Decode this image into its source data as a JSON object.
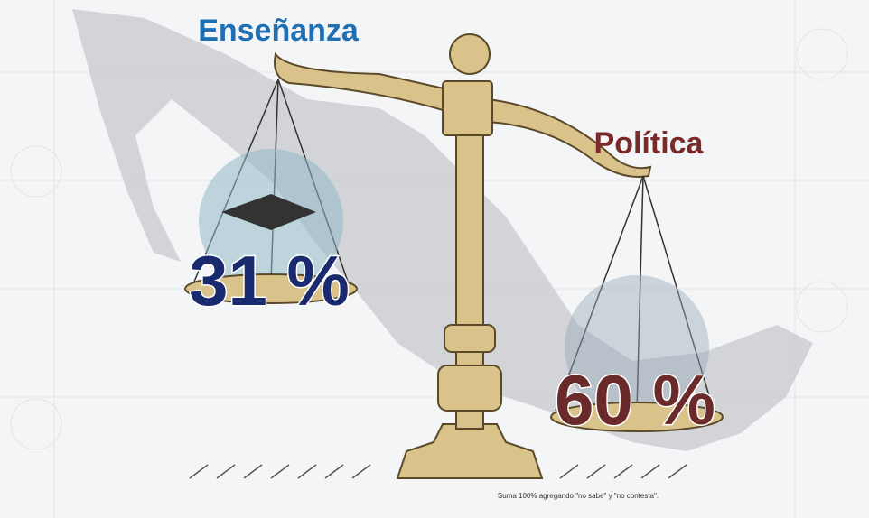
{
  "left": {
    "label": "Enseñanza",
    "value": "31 %"
  },
  "right": {
    "label": "Política",
    "value": "60 %"
  },
  "footnote": "Suma 100% agregando \"no sabe\" y \"no contesta\"."
}
